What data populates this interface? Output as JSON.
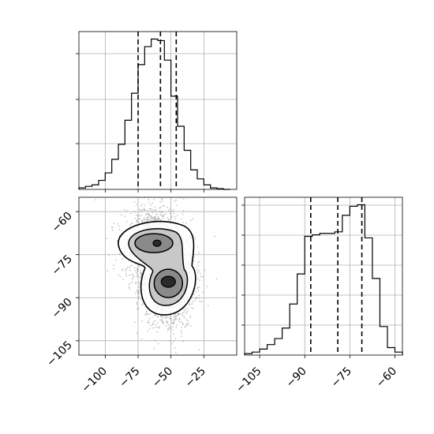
{
  "chart_data": [
    {
      "type": "histogram",
      "panel": "top-left",
      "bin_edges": [
        -120,
        -115,
        -110,
        -105,
        -100,
        -95,
        -90,
        -85,
        -80,
        -75,
        -70,
        -65,
        -60,
        -55,
        -50,
        -45,
        -40,
        -35,
        -30,
        -25,
        -20,
        -15,
        -10,
        -5
      ],
      "counts": [
        0.01,
        0.02,
        0.03,
        0.06,
        0.11,
        0.2,
        0.3,
        0.46,
        0.64,
        0.83,
        0.95,
        1.0,
        0.99,
        0.86,
        0.62,
        0.42,
        0.26,
        0.13,
        0.07,
        0.03,
        0.01,
        0.005,
        0
      ],
      "quantiles": [
        -75,
        -58,
        -46
      ],
      "xlim": [
        -120,
        0
      ],
      "ylim": [
        0,
        1.05
      ],
      "grid": true
    },
    {
      "type": "scatter",
      "panel": "bottom-left",
      "xlim": [
        -120,
        0
      ],
      "ylim": [
        -110,
        -55
      ],
      "x_ticks": [
        -100,
        -75,
        -50,
        -25
      ],
      "x_tick_labels": [
        "−100",
        "−75",
        "−50",
        "−25"
      ],
      "y_ticks": [
        -60,
        -75,
        -90,
        -105
      ],
      "y_tick_labels": [
        "−60",
        "−75",
        "−90",
        "−105"
      ],
      "components": [
        {
          "cx": -63,
          "cy": -71,
          "sx": 10,
          "sy": 5.5,
          "weight": 0.42
        },
        {
          "cx": -52,
          "cy": -85,
          "sx": 8.5,
          "sy": 6,
          "weight": 0.58
        }
      ],
      "density_peaks": [
        [
          -63,
          -71
        ],
        [
          -52,
          -85
        ]
      ],
      "grid": true
    },
    {
      "type": "histogram",
      "panel": "bottom-right",
      "bin_edges": [
        -110,
        -107.5,
        -105,
        -102.5,
        -100,
        -97.5,
        -95,
        -92.5,
        -90,
        -87.5,
        -85,
        -82.5,
        -80,
        -77.5,
        -75,
        -72.5,
        -70,
        -67.5,
        -65,
        -62.5,
        -60,
        -57.5
      ],
      "counts": [
        0.01,
        0.02,
        0.04,
        0.07,
        0.11,
        0.18,
        0.34,
        0.54,
        0.79,
        0.8,
        0.81,
        0.81,
        0.82,
        0.93,
        0.99,
        1.0,
        0.78,
        0.51,
        0.19,
        0.05,
        0.02
      ],
      "quantiles": [
        -88,
        -79,
        -71
      ],
      "xlim": [
        -110,
        -57.5
      ],
      "x_ticks": [
        -105,
        -90,
        -75,
        -60
      ],
      "x_tick_labels": [
        "−105",
        "−90",
        "−75",
        "−60"
      ],
      "ylim": [
        0,
        1.05
      ],
      "grid": true
    }
  ]
}
